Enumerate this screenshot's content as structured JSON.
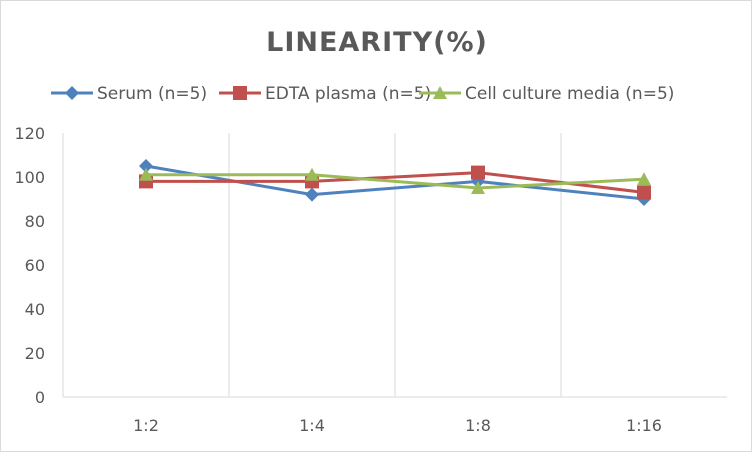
{
  "chart_data": {
    "type": "line",
    "title": "LINEARITY(%)",
    "categories": [
      "1:2",
      "1:4",
      "1:8",
      "1:16"
    ],
    "series": [
      {
        "name": "Serum (n=5)",
        "color": "#4f81bd",
        "marker": "diamond",
        "values": [
          105,
          92,
          98,
          90
        ]
      },
      {
        "name": "EDTA plasma (n=5)",
        "color": "#c0504d",
        "marker": "square",
        "values": [
          98,
          98,
          102,
          93
        ]
      },
      {
        "name": "Cell culture media (n=5)",
        "color": "#9bbb59",
        "marker": "triangle",
        "values": [
          101,
          101,
          95,
          99
        ]
      }
    ],
    "ylim": [
      0,
      120
    ],
    "yticks": [
      0,
      20,
      40,
      60,
      80,
      100,
      120
    ],
    "grid": "vertical",
    "legend": "top",
    "xlabel": "",
    "ylabel": ""
  }
}
